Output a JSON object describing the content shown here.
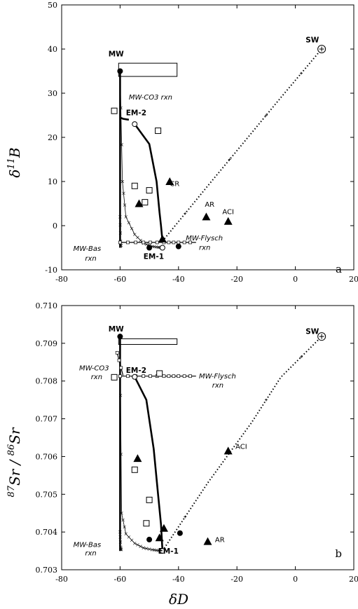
{
  "chart_data": [
    {
      "panel": "a",
      "type": "scatter",
      "panel_label": "a",
      "xlim": [
        -80,
        20
      ],
      "ylim": [
        -10,
        50
      ],
      "x_ticks": [
        -80,
        -60,
        -40,
        -20,
        0,
        20
      ],
      "y_ticks": [
        -10,
        0,
        10,
        20,
        30,
        40,
        50
      ],
      "x_tick_labels": [
        "-80",
        "-60",
        "-40",
        "-20",
        "0",
        "20"
      ],
      "y_tick_labels": [
        "-10",
        "0",
        "10",
        "20",
        "30",
        "40",
        "50"
      ],
      "ylabel_main": "δ",
      "ylabel_sup": "11",
      "ylabel_tail": "B",
      "grid": false,
      "mw_box": {
        "x": [
          -60.5,
          -40.5
        ],
        "y": [
          33.8,
          36.8
        ]
      },
      "labels": [
        {
          "text": "MW",
          "x": -64,
          "y": 38.3,
          "style": "bold"
        },
        {
          "text": "SW",
          "x": 3.5,
          "y": 41.5,
          "style": "bold"
        },
        {
          "text": "EM-2",
          "x": -58,
          "y": 25,
          "style": "bold"
        },
        {
          "text": "EM-1",
          "x": -52,
          "y": -7.5,
          "style": "bold"
        },
        {
          "text": "CR",
          "x": -43,
          "y": 9,
          "style": "normal"
        },
        {
          "text": "AR",
          "x": -31,
          "y": 4.3,
          "style": "normal"
        },
        {
          "text": "ACI",
          "x": -25,
          "y": 2.6,
          "style": "normal"
        },
        {
          "text": "MW-CO3 rxn",
          "x": -57,
          "y": 28.6,
          "style": "italic"
        },
        {
          "text": "MW-Flysch",
          "x": -37.5,
          "y": -3.3,
          "style": "italic"
        },
        {
          "text": "rxn",
          "x": -33,
          "y": -5.5,
          "style": "italic"
        },
        {
          "text": "MW-Bas",
          "x": -76,
          "y": -5.7,
          "style": "italic"
        },
        {
          "text": "rxn",
          "x": -72,
          "y": -7.9,
          "style": "italic"
        }
      ],
      "series": [
        {
          "kind": "thick-line",
          "x": [
            -60,
            -60,
            -60,
            -60
          ],
          "y": [
            35,
            20,
            5,
            -5
          ]
        },
        {
          "kind": "thick-line",
          "x": [
            -60,
            -59,
            -58,
            -57
          ],
          "y": [
            24.5,
            24.2,
            24.1,
            24
          ]
        },
        {
          "kind": "thick-line",
          "x": [
            -55,
            -50,
            -47.5,
            -46.5,
            -46,
            -45.5
          ],
          "y": [
            23,
            18.5,
            10,
            3,
            0,
            -3.5
          ]
        },
        {
          "kind": "dotted-line",
          "x": [
            -45.5,
            -30,
            -15,
            -5,
            9
          ],
          "y": [
            -3.5,
            9,
            21,
            29,
            40
          ]
        },
        {
          "kind": "thin-curve",
          "x": [
            -60,
            -59.2,
            -58,
            -55,
            -52,
            -49,
            -47,
            -45.5
          ],
          "y": [
            35,
            10,
            2,
            -2,
            -4,
            -4.7,
            -4.9,
            -5
          ]
        },
        {
          "kind": "thin-curve",
          "x": [
            -60,
            -59.8,
            -59.5
          ],
          "y": [
            2,
            -3.5,
            -5
          ]
        },
        {
          "kind": "reaction-line",
          "x": [
            -60,
            -52,
            -45,
            -40,
            -34
          ],
          "y": [
            -3.8,
            -3.8,
            -3.8,
            -3.8,
            -3.8
          ]
        }
      ],
      "points": [
        {
          "shape": "square",
          "x": [
            -62,
            -47,
            -55,
            -50,
            -51.5
          ],
          "y": [
            26,
            21.5,
            9,
            8,
            5.3
          ]
        },
        {
          "shape": "triangle",
          "x": [
            -43,
            -53.5,
            -30.5,
            -23,
            -45.5
          ],
          "y": [
            10,
            5,
            2,
            1,
            -3
          ]
        },
        {
          "shape": "circle-filled",
          "x": [
            -60,
            -50,
            -40
          ],
          "y": [
            35,
            -5,
            -4.7
          ]
        },
        {
          "shape": "circle-open",
          "x": [
            -55,
            -45.5
          ],
          "y": [
            23,
            -5
          ]
        },
        {
          "shape": "circle-plus",
          "x": [
            9
          ],
          "y": [
            40
          ]
        }
      ]
    },
    {
      "panel": "b",
      "type": "scatter",
      "panel_label": "b",
      "xlim": [
        -80,
        20
      ],
      "ylim": [
        0.703,
        0.71
      ],
      "x_ticks": [
        -80,
        -60,
        -40,
        -20,
        0,
        20
      ],
      "y_ticks": [
        0.703,
        0.704,
        0.705,
        0.706,
        0.707,
        0.708,
        0.709,
        0.71
      ],
      "x_tick_labels": [
        "-80",
        "-60",
        "-40",
        "-20",
        "0",
        "20"
      ],
      "y_tick_labels": [
        "0.703",
        "0.704",
        "0.705",
        "0.706",
        "0.707",
        "0.708",
        "0.709",
        "0.710"
      ],
      "xlabel": "δD",
      "ylabel_main": "Sr / Sr",
      "ylabel_sup1": "87",
      "ylabel_sup2": "86",
      "grid": false,
      "mw_box": {
        "x": [
          -60.5,
          -40.5
        ],
        "y": [
          0.70897,
          0.70912
        ]
      },
      "labels": [
        {
          "text": "MW",
          "x": -64,
          "y": 0.70931,
          "style": "bold"
        },
        {
          "text": "SW",
          "x": 3.5,
          "y": 0.70925,
          "style": "bold"
        },
        {
          "text": "EM-2",
          "x": -58,
          "y": 0.70822,
          "style": "bold"
        },
        {
          "text": "EM-1",
          "x": -47,
          "y": 0.70343,
          "style": "bold"
        },
        {
          "text": "ACI",
          "x": -20.5,
          "y": 0.7062,
          "style": "normal"
        },
        {
          "text": "AR",
          "x": -27.5,
          "y": 0.70373,
          "style": "normal"
        },
        {
          "text": "MW-CO3",
          "x": -74,
          "y": 0.70828,
          "style": "italic"
        },
        {
          "text": "rxn",
          "x": -70,
          "y": 0.70805,
          "style": "italic"
        },
        {
          "text": "MW-Flysch",
          "x": -33,
          "y": 0.70807,
          "style": "italic"
        },
        {
          "text": "rxn",
          "x": -28.5,
          "y": 0.70783,
          "style": "italic"
        },
        {
          "text": "MW-Bas",
          "x": -76,
          "y": 0.7036,
          "style": "italic"
        },
        {
          "text": "rxn",
          "x": -72,
          "y": 0.70338,
          "style": "italic"
        }
      ],
      "series": [
        {
          "kind": "thick-line",
          "x": [
            -60,
            -60,
            -60,
            -60
          ],
          "y": [
            0.70918,
            0.7065,
            0.7045,
            0.7035
          ]
        },
        {
          "kind": "thick-line",
          "x": [
            -55,
            -51,
            -48.5,
            -47,
            -46,
            -45.5
          ],
          "y": [
            0.70811,
            0.7075,
            0.7062,
            0.705,
            0.7042,
            0.7035
          ]
        },
        {
          "kind": "dotted-line",
          "x": [
            -45.5,
            -30,
            -15,
            -5,
            9
          ],
          "y": [
            0.7035,
            0.7053,
            0.7069,
            0.7081,
            0.70918
          ]
        },
        {
          "kind": "thin-curve",
          "x": [
            -60,
            -59.5,
            -58,
            -55,
            -52,
            -49,
            -47,
            -45.5
          ],
          "y": [
            0.70918,
            0.7045,
            0.70395,
            0.7037,
            0.70358,
            0.70353,
            0.70351,
            0.7035
          ]
        },
        {
          "kind": "thin-curve",
          "x": [
            -60,
            -59.8,
            -59.5
          ],
          "y": [
            0.704,
            0.7036,
            0.7035
          ]
        },
        {
          "kind": "reaction-line",
          "x": [
            -60,
            -52,
            -45,
            -40,
            -34
          ],
          "y": [
            0.70813,
            0.70813,
            0.70813,
            0.70813,
            0.70813
          ]
        },
        {
          "kind": "reaction-line",
          "x": [
            -61,
            -59
          ],
          "y": [
            0.70875,
            0.70815
          ]
        }
      ],
      "points": [
        {
          "shape": "square",
          "x": [
            -62,
            -46.5,
            -55,
            -50,
            -51
          ],
          "y": [
            0.7081,
            0.7082,
            0.70565,
            0.70485,
            0.70423
          ]
        },
        {
          "shape": "triangle",
          "x": [
            -23,
            -54,
            -45,
            -46.5,
            -30
          ],
          "y": [
            0.70615,
            0.70595,
            0.7041,
            0.70385,
            0.70375
          ]
        },
        {
          "shape": "circle-filled",
          "x": [
            -60,
            -50,
            -39.5
          ],
          "y": [
            0.70918,
            0.7038,
            0.70397
          ]
        },
        {
          "shape": "circle-open",
          "x": [
            -55,
            -45.5
          ],
          "y": [
            0.70811,
            0.7035
          ]
        },
        {
          "shape": "circle-plus",
          "x": [
            9
          ],
          "y": [
            0.70918
          ]
        }
      ]
    }
  ]
}
